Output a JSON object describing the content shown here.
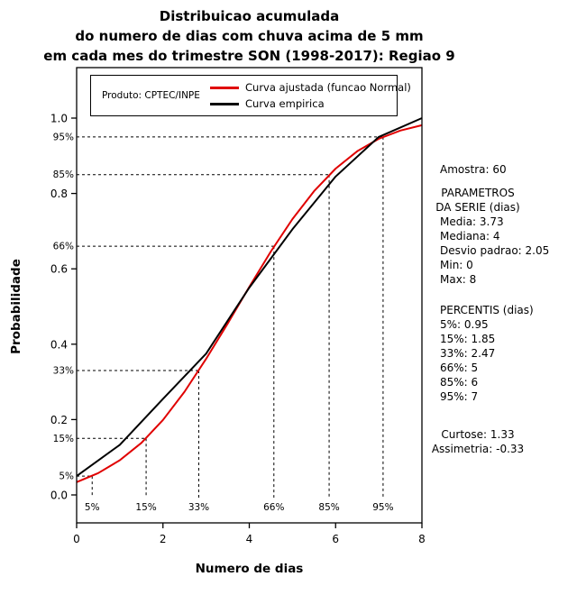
{
  "title": {
    "lines": [
      "Distribuicao acumulada",
      "do numero de dias com chuva acima de 5 mm",
      "em cada mes do trimestre SON (1998-2017): Regiao 9"
    ]
  },
  "legend": {
    "product_label": "Produto: CPTEC/INPE",
    "entries": [
      {
        "label": "Curva ajustada (funcao Normal)",
        "color": "#e00000"
      },
      {
        "label": "Curva empirica",
        "color": "#000000"
      }
    ]
  },
  "chart_data": {
    "type": "line",
    "title": "Distribuicao acumulada do numero de dias com chuva acima de 5 mm em cada mes do trimestre SON (1998-2017): Regiao 9",
    "xlabel": "Numero de dias",
    "ylabel": "Probabilidade",
    "xlim": [
      0,
      8
    ],
    "ylim": [
      0,
      1
    ],
    "x_ticks": [
      0,
      2,
      4,
      6,
      8
    ],
    "y_ticks": [
      0,
      0.2,
      0.4,
      0.6,
      0.8,
      1.0
    ],
    "grid": false,
    "legend_position": "top-inside",
    "series": [
      {
        "name": "Curva ajustada (funcao Normal)",
        "color": "#e00000",
        "x": [
          0,
          0.5,
          1,
          1.5,
          2,
          2.5,
          3,
          3.5,
          4,
          4.5,
          5,
          5.5,
          6,
          6.5,
          7,
          7.5,
          8
        ],
        "y": [
          0.034,
          0.058,
          0.092,
          0.138,
          0.199,
          0.274,
          0.361,
          0.455,
          0.552,
          0.646,
          0.732,
          0.806,
          0.866,
          0.912,
          0.945,
          0.967,
          0.981
        ]
      },
      {
        "name": "Curva empirica",
        "color": "#000000",
        "x": [
          0,
          1,
          2,
          3,
          4,
          5,
          6,
          7,
          8
        ],
        "y": [
          0.05,
          0.133,
          0.255,
          0.375,
          0.55,
          0.705,
          0.845,
          0.95,
          1.0
        ]
      }
    ],
    "percentile_guides": [
      {
        "label": "5%",
        "probability": 0.05,
        "days": 0.36
      },
      {
        "label": "15%",
        "probability": 0.15,
        "days": 1.61
      },
      {
        "label": "33%",
        "probability": 0.33,
        "days": 2.83
      },
      {
        "label": "66%",
        "probability": 0.66,
        "days": 4.57
      },
      {
        "label": "85%",
        "probability": 0.85,
        "days": 5.85
      },
      {
        "label": "95%",
        "probability": 0.95,
        "days": 7.1
      }
    ],
    "statistics": {
      "amostra": 60,
      "media": 3.73,
      "mediana": 4,
      "desvio_padrao": 2.05,
      "min": 0,
      "max": 8,
      "percentis_dias": {
        "5%": 0.95,
        "15%": 1.85,
        "33%": 2.47,
        "66%": 5,
        "85%": 6,
        "95%": 7
      },
      "curtose": 1.33,
      "assimetria": -0.33
    }
  },
  "stats": {
    "amostra": "Amostra: 60",
    "parametros_header": [
      "PARAMETROS",
      "DA SERIE (dias)"
    ],
    "parametros": [
      "Media: 3.73",
      "Mediana: 4",
      "Desvio padrao: 2.05",
      "Min: 0",
      "Max: 8"
    ],
    "percentis_header": "PERCENTIS (dias)",
    "percentis": [
      "5%: 0.95",
      "15%: 1.85",
      "33%: 2.47",
      "66%: 5",
      "85%: 6",
      "95%: 7"
    ],
    "curtose": "Curtose: 1.33",
    "assimetria": "Assimetria: -0.33"
  }
}
